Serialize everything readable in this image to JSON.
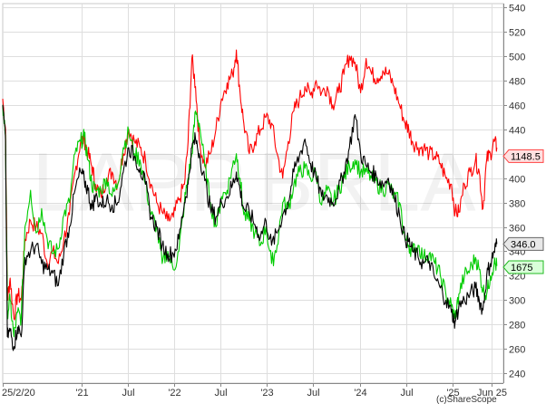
{
  "chart_data": {
    "type": "line",
    "watermark": "LAPP.BRLA",
    "copyright": "(c)ShareScope",
    "y_ticks": [
      240,
      260,
      280,
      300,
      320,
      340,
      360,
      380,
      400,
      420,
      440,
      460,
      480,
      500,
      520,
      540
    ],
    "ylim": [
      232,
      543
    ],
    "x_ticks": [
      {
        "label": "25/2/20",
        "t": 0
      },
      {
        "label": "'21",
        "t": 0.85
      },
      {
        "label": "Jul",
        "t": 1.35
      },
      {
        "label": "'22",
        "t": 1.85
      },
      {
        "label": "Jul",
        "t": 2.35
      },
      {
        "label": "'23",
        "t": 2.85
      },
      {
        "label": "Jul",
        "t": 3.35
      },
      {
        "label": "'24",
        "t": 3.85
      },
      {
        "label": "Jul",
        "t": 4.35
      },
      {
        "label": "'25",
        "t": 4.85
      },
      {
        "label": "Jun 25",
        "t": 5.27
      }
    ],
    "xlim": [
      0,
      5.4
    ],
    "grid": true,
    "series": [
      {
        "color": "#ff0000",
        "last_label": "1148.5",
        "label_y": 418,
        "points": [
          [
            0.0,
            465
          ],
          [
            0.03,
            440
          ],
          [
            0.05,
            300
          ],
          [
            0.08,
            318
          ],
          [
            0.12,
            285
          ],
          [
            0.16,
            305
          ],
          [
            0.2,
            300
          ],
          [
            0.24,
            350
          ],
          [
            0.3,
            365
          ],
          [
            0.36,
            360
          ],
          [
            0.42,
            355
          ],
          [
            0.48,
            330
          ],
          [
            0.54,
            340
          ],
          [
            0.6,
            330
          ],
          [
            0.66,
            350
          ],
          [
            0.72,
            370
          ],
          [
            0.78,
            405
          ],
          [
            0.84,
            430
          ],
          [
            0.88,
            432
          ],
          [
            0.92,
            420
          ],
          [
            0.96,
            410
          ],
          [
            1.0,
            395
          ],
          [
            1.06,
            385
          ],
          [
            1.12,
            400
          ],
          [
            1.18,
            405
          ],
          [
            1.24,
            395
          ],
          [
            1.3,
            420
          ],
          [
            1.36,
            440
          ],
          [
            1.42,
            430
          ],
          [
            1.48,
            425
          ],
          [
            1.54,
            415
          ],
          [
            1.6,
            395
          ],
          [
            1.66,
            380
          ],
          [
            1.72,
            372
          ],
          [
            1.78,
            365
          ],
          [
            1.84,
            368
          ],
          [
            1.9,
            382
          ],
          [
            1.96,
            395
          ],
          [
            2.0,
            430
          ],
          [
            2.04,
            498
          ],
          [
            2.08,
            475
          ],
          [
            2.12,
            430
          ],
          [
            2.18,
            410
          ],
          [
            2.24,
            420
          ],
          [
            2.3,
            440
          ],
          [
            2.36,
            465
          ],
          [
            2.42,
            478
          ],
          [
            2.48,
            485
          ],
          [
            2.52,
            505
          ],
          [
            2.56,
            470
          ],
          [
            2.6,
            445
          ],
          [
            2.66,
            420
          ],
          [
            2.72,
            430
          ],
          [
            2.78,
            440
          ],
          [
            2.84,
            450
          ],
          [
            2.9,
            445
          ],
          [
            2.96,
            420
          ],
          [
            3.02,
            400
          ],
          [
            3.08,
            430
          ],
          [
            3.14,
            455
          ],
          [
            3.2,
            465
          ],
          [
            3.26,
            475
          ],
          [
            3.32,
            468
          ],
          [
            3.38,
            480
          ],
          [
            3.44,
            470
          ],
          [
            3.5,
            475
          ],
          [
            3.56,
            460
          ],
          [
            3.62,
            470
          ],
          [
            3.68,
            485
          ],
          [
            3.74,
            500
          ],
          [
            3.8,
            495
          ],
          [
            3.86,
            470
          ],
          [
            3.92,
            498
          ],
          [
            3.98,
            485
          ],
          [
            4.04,
            482
          ],
          [
            4.1,
            488
          ],
          [
            4.16,
            485
          ],
          [
            4.22,
            475
          ],
          [
            4.28,
            460
          ],
          [
            4.34,
            445
          ],
          [
            4.38,
            440
          ],
          [
            4.42,
            430
          ],
          [
            4.48,
            425
          ],
          [
            4.54,
            425
          ],
          [
            4.6,
            420
          ],
          [
            4.66,
            418
          ],
          [
            4.72,
            412
          ],
          [
            4.78,
            400
          ],
          [
            4.84,
            395
          ],
          [
            4.88,
            372
          ],
          [
            4.92,
            372
          ],
          [
            4.98,
            395
          ],
          [
            5.04,
            405
          ],
          [
            5.1,
            415
          ],
          [
            5.14,
            405
          ],
          [
            5.18,
            375
          ],
          [
            5.22,
            415
          ],
          [
            5.26,
            420
          ],
          [
            5.3,
            430
          ],
          [
            5.33,
            425
          ]
        ]
      },
      {
        "color": "#00cc00",
        "last_label": "1675",
        "label_y": 327,
        "points": [
          [
            0.0,
            460
          ],
          [
            0.03,
            435
          ],
          [
            0.05,
            290
          ],
          [
            0.08,
            300
          ],
          [
            0.12,
            270
          ],
          [
            0.16,
            290
          ],
          [
            0.2,
            285
          ],
          [
            0.24,
            360
          ],
          [
            0.3,
            390
          ],
          [
            0.36,
            355
          ],
          [
            0.42,
            375
          ],
          [
            0.48,
            350
          ],
          [
            0.54,
            338
          ],
          [
            0.6,
            342
          ],
          [
            0.66,
            370
          ],
          [
            0.72,
            380
          ],
          [
            0.78,
            420
          ],
          [
            0.84,
            430
          ],
          [
            0.88,
            434
          ],
          [
            0.92,
            415
          ],
          [
            0.96,
            395
          ],
          [
            1.0,
            390
          ],
          [
            1.06,
            390
          ],
          [
            1.12,
            400
          ],
          [
            1.18,
            385
          ],
          [
            1.24,
            395
          ],
          [
            1.3,
            425
          ],
          [
            1.36,
            438
          ],
          [
            1.42,
            420
          ],
          [
            1.48,
            415
          ],
          [
            1.54,
            395
          ],
          [
            1.6,
            370
          ],
          [
            1.66,
            360
          ],
          [
            1.72,
            330
          ],
          [
            1.78,
            340
          ],
          [
            1.84,
            325
          ],
          [
            1.9,
            340
          ],
          [
            1.96,
            380
          ],
          [
            2.0,
            400
          ],
          [
            2.04,
            420
          ],
          [
            2.08,
            455
          ],
          [
            2.12,
            445
          ],
          [
            2.18,
            410
          ],
          [
            2.24,
            380
          ],
          [
            2.3,
            360
          ],
          [
            2.36,
            385
          ],
          [
            2.42,
            390
          ],
          [
            2.48,
            410
          ],
          [
            2.52,
            420
          ],
          [
            2.56,
            400
          ],
          [
            2.6,
            370
          ],
          [
            2.66,
            365
          ],
          [
            2.72,
            355
          ],
          [
            2.78,
            345
          ],
          [
            2.84,
            360
          ],
          [
            2.9,
            330
          ],
          [
            2.96,
            345
          ],
          [
            3.02,
            380
          ],
          [
            3.08,
            375
          ],
          [
            3.14,
            395
          ],
          [
            3.2,
            405
          ],
          [
            3.26,
            408
          ],
          [
            3.32,
            400
          ],
          [
            3.38,
            405
          ],
          [
            3.44,
            378
          ],
          [
            3.5,
            390
          ],
          [
            3.56,
            380
          ],
          [
            3.62,
            390
          ],
          [
            3.68,
            400
          ],
          [
            3.74,
            410
          ],
          [
            3.8,
            415
          ],
          [
            3.86,
            405
          ],
          [
            3.92,
            405
          ],
          [
            3.98,
            400
          ],
          [
            4.04,
            395
          ],
          [
            4.1,
            390
          ],
          [
            4.16,
            395
          ],
          [
            4.22,
            385
          ],
          [
            4.28,
            380
          ],
          [
            4.34,
            350
          ],
          [
            4.38,
            345
          ],
          [
            4.42,
            340
          ],
          [
            4.48,
            345
          ],
          [
            4.54,
            335
          ],
          [
            4.6,
            338
          ],
          [
            4.66,
            330
          ],
          [
            4.72,
            320
          ],
          [
            4.78,
            305
          ],
          [
            4.84,
            295
          ],
          [
            4.88,
            285
          ],
          [
            4.92,
            305
          ],
          [
            4.98,
            320
          ],
          [
            5.04,
            325
          ],
          [
            5.1,
            335
          ],
          [
            5.14,
            325
          ],
          [
            5.18,
            308
          ],
          [
            5.22,
            305
          ],
          [
            5.26,
            320
          ],
          [
            5.3,
            330
          ],
          [
            5.33,
            328
          ]
        ]
      },
      {
        "color": "#000000",
        "last_label": "346.0",
        "label_y": 346,
        "points": [
          [
            0.0,
            460
          ],
          [
            0.03,
            430
          ],
          [
            0.05,
            270
          ],
          [
            0.08,
            275
          ],
          [
            0.12,
            262
          ],
          [
            0.16,
            278
          ],
          [
            0.2,
            270
          ],
          [
            0.24,
            335
          ],
          [
            0.3,
            340
          ],
          [
            0.36,
            345
          ],
          [
            0.42,
            330
          ],
          [
            0.48,
            325
          ],
          [
            0.54,
            322
          ],
          [
            0.6,
            312
          ],
          [
            0.66,
            340
          ],
          [
            0.72,
            360
          ],
          [
            0.78,
            390
          ],
          [
            0.84,
            405
          ],
          [
            0.88,
            398
          ],
          [
            0.92,
            390
          ],
          [
            0.96,
            375
          ],
          [
            1.0,
            385
          ],
          [
            1.06,
            378
          ],
          [
            1.12,
            382
          ],
          [
            1.18,
            378
          ],
          [
            1.24,
            380
          ],
          [
            1.3,
            405
          ],
          [
            1.36,
            425
          ],
          [
            1.42,
            418
          ],
          [
            1.48,
            408
          ],
          [
            1.54,
            395
          ],
          [
            1.6,
            368
          ],
          [
            1.66,
            360
          ],
          [
            1.72,
            345
          ],
          [
            1.78,
            338
          ],
          [
            1.84,
            338
          ],
          [
            1.9,
            350
          ],
          [
            1.96,
            380
          ],
          [
            2.0,
            395
          ],
          [
            2.04,
            425
          ],
          [
            2.08,
            432
          ],
          [
            2.12,
            420
          ],
          [
            2.18,
            398
          ],
          [
            2.24,
            375
          ],
          [
            2.3,
            368
          ],
          [
            2.36,
            380
          ],
          [
            2.42,
            385
          ],
          [
            2.48,
            395
          ],
          [
            2.52,
            405
          ],
          [
            2.56,
            390
          ],
          [
            2.6,
            375
          ],
          [
            2.66,
            372
          ],
          [
            2.72,
            362
          ],
          [
            2.78,
            352
          ],
          [
            2.84,
            365
          ],
          [
            2.9,
            345
          ],
          [
            2.96,
            355
          ],
          [
            3.02,
            370
          ],
          [
            3.08,
            380
          ],
          [
            3.14,
            405
          ],
          [
            3.2,
            418
          ],
          [
            3.26,
            432
          ],
          [
            3.32,
            412
          ],
          [
            3.38,
            400
          ],
          [
            3.44,
            385
          ],
          [
            3.5,
            385
          ],
          [
            3.56,
            380
          ],
          [
            3.62,
            390
          ],
          [
            3.68,
            405
          ],
          [
            3.74,
            425
          ],
          [
            3.8,
            452
          ],
          [
            3.86,
            420
          ],
          [
            3.92,
            410
          ],
          [
            3.98,
            405
          ],
          [
            4.04,
            400
          ],
          [
            4.1,
            395
          ],
          [
            4.16,
            400
          ],
          [
            4.22,
            385
          ],
          [
            4.28,
            370
          ],
          [
            4.34,
            350
          ],
          [
            4.38,
            348
          ],
          [
            4.42,
            340
          ],
          [
            4.48,
            335
          ],
          [
            4.54,
            330
          ],
          [
            4.6,
            332
          ],
          [
            4.66,
            318
          ],
          [
            4.72,
            310
          ],
          [
            4.78,
            300
          ],
          [
            4.84,
            290
          ],
          [
            4.88,
            282
          ],
          [
            4.92,
            295
          ],
          [
            4.98,
            300
          ],
          [
            5.04,
            305
          ],
          [
            5.1,
            310
          ],
          [
            5.14,
            300
          ],
          [
            5.18,
            292
          ],
          [
            5.22,
            320
          ],
          [
            5.26,
            330
          ],
          [
            5.3,
            340
          ],
          [
            5.33,
            346
          ]
        ]
      }
    ]
  }
}
